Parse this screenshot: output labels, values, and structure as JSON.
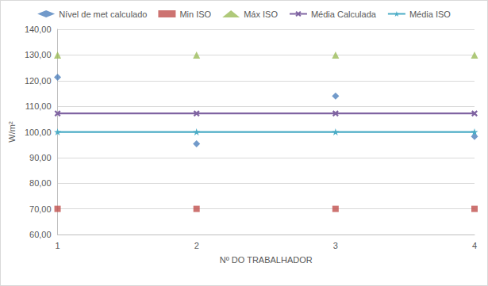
{
  "chart_data": {
    "type": "line",
    "x_label": "Nº DO TRABALHADOR",
    "y_label": "W/m²",
    "x": [
      1,
      2,
      3,
      4
    ],
    "xlim": [
      1,
      4
    ],
    "xticks": [
      1,
      2,
      3,
      4
    ],
    "ylim": [
      60,
      140
    ],
    "yticks": [
      {
        "value": 60,
        "label": "60,00"
      },
      {
        "value": 70,
        "label": "70,00"
      },
      {
        "value": 80,
        "label": "80,00"
      },
      {
        "value": 90,
        "label": "90,00"
      },
      {
        "value": 100,
        "label": "100,00"
      },
      {
        "value": 110,
        "label": "110,00"
      },
      {
        "value": 120,
        "label": "120,00"
      },
      {
        "value": 130,
        "label": "130,00"
      },
      {
        "value": 140,
        "label": "140,00"
      }
    ],
    "grid": true,
    "legend": "top",
    "series": [
      {
        "name": "Nível de met calculado",
        "type": "scatter",
        "marker": "diamond",
        "color": "#4f81bd",
        "values": [
          121.3,
          95.4,
          114.0,
          98.2
        ]
      },
      {
        "name": "Min ISO",
        "type": "scatter",
        "marker": "square",
        "color": "#c0504d",
        "values": [
          70,
          70,
          70,
          70
        ]
      },
      {
        "name": "Máx ISO",
        "type": "scatter",
        "marker": "triangle",
        "color": "#9bbb59",
        "values": [
          130,
          130,
          130,
          130
        ]
      },
      {
        "name": "Média Calculada",
        "type": "line",
        "marker": "x",
        "line_style": "solid",
        "color": "#8064a2",
        "values": [
          107.2,
          107.2,
          107.2,
          107.2
        ]
      },
      {
        "name": "Média ISO",
        "type": "line",
        "marker": "star",
        "line_style": "solid",
        "color": "#4bacc6",
        "values": [
          100,
          100,
          100,
          100
        ]
      }
    ]
  }
}
